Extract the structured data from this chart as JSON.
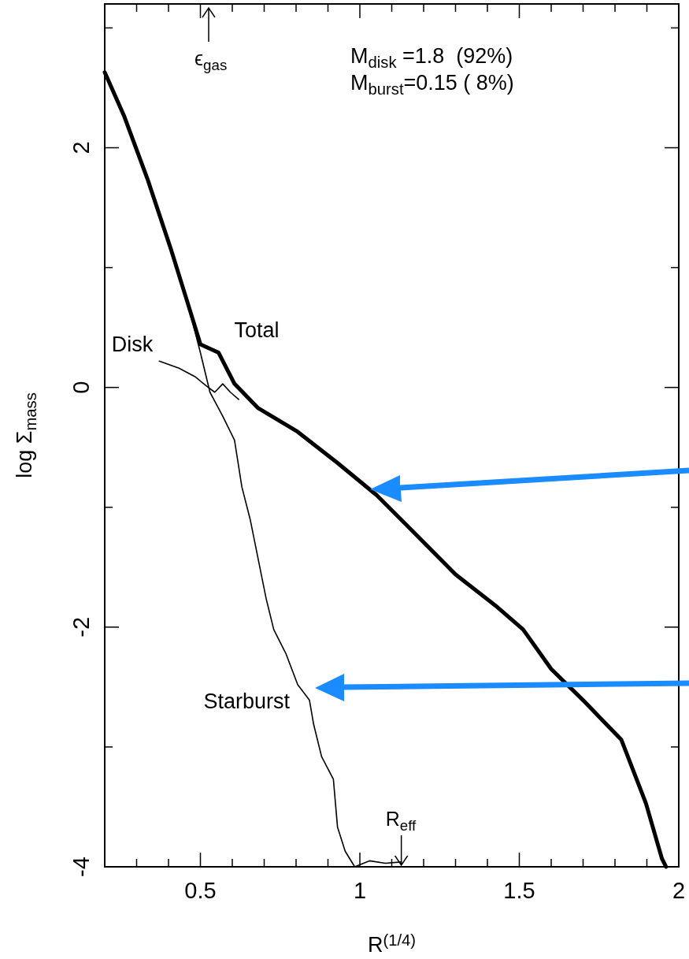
{
  "chart_data": {
    "type": "line",
    "xlabel": "R$^{(1/4)}$",
    "ylabel": "log Σ$_{mass}$",
    "xlim": [
      0.2,
      2
    ],
    "ylim": [
      -4,
      3.2
    ],
    "xticks": [
      {
        "value": 0.3,
        "label": null
      },
      {
        "value": 0.4,
        "label": null
      },
      {
        "value": 0.5,
        "label": "0.5"
      },
      {
        "value": 0.6,
        "label": null
      },
      {
        "value": 0.7,
        "label": null
      },
      {
        "value": 0.8,
        "label": null
      },
      {
        "value": 0.9,
        "label": null
      },
      1,
      {
        "value": 1.1,
        "label": null
      },
      {
        "value": 1.2,
        "label": null
      },
      {
        "value": 1.3,
        "label": null
      },
      {
        "value": 1.4,
        "label": null
      },
      1.5,
      {
        "value": 1.6,
        "label": null
      },
      {
        "value": 1.7,
        "label": null
      },
      {
        "value": 1.8,
        "label": null
      },
      {
        "value": 1.9,
        "label": null
      },
      2
    ],
    "yticks": [
      -4,
      {
        "value": -3,
        "label": null
      },
      -2,
      {
        "value": -1,
        "label": null
      },
      0,
      {
        "value": 1,
        "label": null
      },
      2,
      {
        "value": 3,
        "label": null
      }
    ],
    "grid": false,
    "marker": "none",
    "line_style": "solid",
    "series": [
      {
        "name": "Total",
        "color": "#000000",
        "x": [
          0.2,
          0.26,
          0.334,
          0.408,
          0.47,
          0.5,
          0.557,
          0.607,
          0.68,
          0.805,
          0.93,
          1.053,
          1.177,
          1.3,
          1.425,
          1.512,
          1.6,
          1.7,
          1.82,
          1.897,
          1.947,
          1.96
        ],
        "values": [
          2.63,
          2.27,
          1.74,
          1.15,
          0.62,
          0.36,
          0.29,
          0.03,
          -0.17,
          -0.37,
          -0.63,
          -0.9,
          -1.23,
          -1.56,
          -1.82,
          -2.02,
          -2.35,
          -2.61,
          -2.94,
          -3.47,
          -3.93,
          -4.0
        ]
      },
      {
        "name": "Starburst",
        "color": "#000000",
        "x": [
          0.2,
          0.26,
          0.334,
          0.408,
          0.47,
          0.5,
          0.53,
          0.57,
          0.607,
          0.63,
          0.656,
          0.706,
          0.73,
          0.768,
          0.805,
          0.842,
          0.855,
          0.88,
          0.917,
          0.93,
          0.954,
          0.984,
          1.03,
          1.08,
          1.13
        ],
        "values": [
          2.62,
          2.26,
          1.73,
          1.14,
          0.6,
          0.29,
          -0.04,
          -0.24,
          -0.44,
          -0.83,
          -1.1,
          -1.76,
          -2.02,
          -2.22,
          -2.48,
          -2.61,
          -2.81,
          -3.08,
          -3.27,
          -3.67,
          -3.87,
          -4.0,
          -3.95,
          -3.97,
          -3.96
        ]
      },
      {
        "name": "Disk",
        "color": "#000000",
        "x": [
          0.371,
          0.433,
          0.483,
          0.52,
          0.545,
          0.57,
          0.594,
          0.62
        ],
        "values": [
          0.22,
          0.16,
          0.09,
          0.01,
          -0.04,
          0.03,
          -0.04,
          -0.1
        ]
      }
    ],
    "annotations": [
      "ϵ$_{gas}$",
      {
        "text": "R$_{eff}$",
        "x": 1.13,
        "y": -4
      },
      "M$_{disk}$ =1.8  (92%)",
      "M$_{burst}$=0.15 ( 8%)"
    ]
  }
}
